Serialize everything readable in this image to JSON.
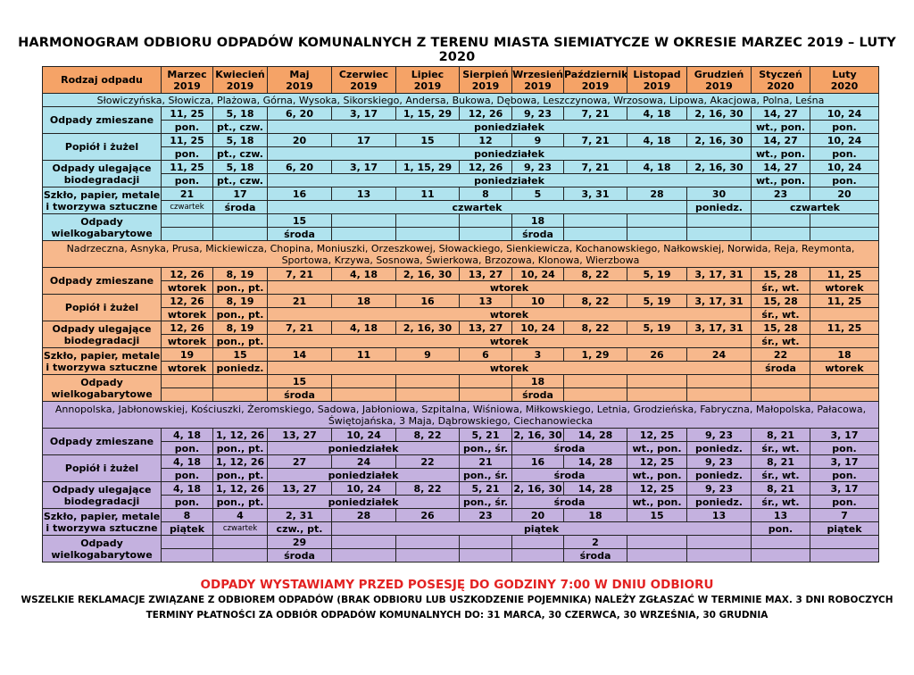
{
  "title": "HARMONOGRAM ODBIORU ODPADÓW KOMUNALNYCH Z TERENU MIASTA SIEMIATYCZE W OKRESIE MARZEC 2019 – LUTY 2020",
  "header": {
    "type": "Rodzaj odpadu",
    "months": [
      {
        "name": "Marzec",
        "year": "2019"
      },
      {
        "name": "Kwiecień",
        "year": "2019"
      },
      {
        "name": "Maj",
        "year": "2019"
      },
      {
        "name": "Czerwiec",
        "year": "2019"
      },
      {
        "name": "Lipiec",
        "year": "2019"
      },
      {
        "name": "Sierpień",
        "year": "2019"
      },
      {
        "name": "Wrzesień",
        "year": "2019"
      },
      {
        "name": "Październik",
        "year": "2019"
      },
      {
        "name": "Listopad",
        "year": "2019"
      },
      {
        "name": "Grudzień",
        "year": "2019"
      },
      {
        "name": "Styczeń",
        "year": "2020"
      },
      {
        "name": "Luty",
        "year": "2020"
      }
    ]
  },
  "zones": [
    {
      "streets": "Słowiczyńska, Słowicza, Plażowa, Górna, Wysoka, Sikorskiego, Andersa, Bukowa, Dębowa, Leszczynowa, Wrzosowa, Lipowa, Akacjowa, Polna, Leśna",
      "rows": [
        {
          "label": "Odpady zmieszane",
          "dates": [
            "11, 25",
            "5, 18",
            "6, 20",
            "3, 17",
            "1, 15, 29",
            "12, 26",
            "9, 23",
            "7, 21",
            "4, 18",
            "2, 16, 30",
            "14, 27",
            "10, 24"
          ],
          "days": [
            {
              "text": "pon.",
              "span": 1
            },
            {
              "text": "pt., czw.",
              "span": 1
            },
            {
              "text": "poniedziałek",
              "span": 8
            },
            {
              "text": "wt., pon.",
              "span": 1
            },
            {
              "text": "pon.",
              "span": 1
            }
          ]
        },
        {
          "label": "Popiół i żużel",
          "dates": [
            "11, 25",
            "5, 18",
            "20",
            "17",
            "15",
            "12",
            "9",
            "7, 21",
            "4, 18",
            "2, 16, 30",
            "14, 27",
            "10, 24"
          ],
          "days": [
            {
              "text": "pon.",
              "span": 1
            },
            {
              "text": "pt., czw.",
              "span": 1
            },
            {
              "text": "poniedziałek",
              "span": 8
            },
            {
              "text": "wt., pon.",
              "span": 1
            },
            {
              "text": "pon.",
              "span": 1
            }
          ]
        },
        {
          "label": "Odpady ulegające biodegradacji",
          "dates": [
            "11, 25",
            "5, 18",
            "6, 20",
            "3, 17",
            "1, 15, 29",
            "12, 26",
            "9, 23",
            "7, 21",
            "4, 18",
            "2, 16, 30",
            "14, 27",
            "10, 24"
          ],
          "days": [
            {
              "text": "pon.",
              "span": 1
            },
            {
              "text": "pt., czw.",
              "span": 1
            },
            {
              "text": "poniedziałek",
              "span": 8
            },
            {
              "text": "wt., pon.",
              "span": 1
            },
            {
              "text": "pon.",
              "span": 1
            }
          ]
        },
        {
          "label": "Szkło, papier, metale i tworzywa sztuczne",
          "dates": [
            "21",
            "17",
            "16",
            "13",
            "11",
            "8",
            "5",
            "3, 31",
            "28",
            "30",
            "23",
            "20"
          ],
          "days": [
            {
              "text": "czwartek",
              "span": 1,
              "small": true
            },
            {
              "text": "środa",
              "span": 1
            },
            {
              "text": "czwartek",
              "span": 7
            },
            {
              "text": "poniedz.",
              "span": 1
            },
            {
              "text": "czwartek",
              "span": 2
            }
          ]
        },
        {
          "label": "Odpady wielkogabarytowe",
          "dates": [
            "",
            "",
            "15",
            "",
            "",
            "",
            "18",
            "",
            "",
            "",
            "",
            ""
          ],
          "days": [
            {
              "text": "",
              "span": 1
            },
            {
              "text": "",
              "span": 1
            },
            {
              "text": "środa",
              "span": 1
            },
            {
              "text": "",
              "span": 1
            },
            {
              "text": "",
              "span": 1
            },
            {
              "text": "",
              "span": 1
            },
            {
              "text": "środa",
              "span": 1
            },
            {
              "text": "",
              "span": 1
            },
            {
              "text": "",
              "span": 1
            },
            {
              "text": "",
              "span": 1
            },
            {
              "text": "",
              "span": 1
            },
            {
              "text": "",
              "span": 1
            }
          ]
        }
      ]
    },
    {
      "streets": "Nadrzeczna, Asnyka, Prusa, Mickiewicza, Chopina, Moniuszki, Orzeszkowej, Słowackiego, Sienkiewicza, Kochanowskiego, Nałkowskiej, Norwida, Reja, Reymonta, Sportowa, Krzywa, Sosnowa, Świerkowa, Brzozowa, Klonowa, Wierzbowa",
      "rows": [
        {
          "label": "Odpady zmieszane",
          "dates": [
            "12, 26",
            "8, 19",
            "7, 21",
            "4, 18",
            "2, 16, 30",
            "13, 27",
            "10, 24",
            "8, 22",
            "5, 19",
            "3, 17, 31",
            "15, 28",
            "11, 25"
          ],
          "days": [
            {
              "text": "wtorek",
              "span": 1
            },
            {
              "text": "pon., pt.",
              "span": 1
            },
            {
              "text": "wtorek",
              "span": 8
            },
            {
              "text": "śr., wt.",
              "span": 1
            },
            {
              "text": "wtorek",
              "span": 1
            }
          ]
        },
        {
          "label": "Popiół i żużel",
          "dates": [
            "12, 26",
            "8, 19",
            "21",
            "18",
            "16",
            "13",
            "10",
            "8, 22",
            "5, 19",
            "3, 17, 31",
            "15, 28",
            "11, 25"
          ],
          "days": [
            {
              "text": "wtorek",
              "span": 1
            },
            {
              "text": "pon., pt.",
              "span": 1
            },
            {
              "text": "wtorek",
              "span": 8
            },
            {
              "text": "śr., wt.",
              "span": 1
            },
            {
              "text": "",
              "span": 1
            }
          ]
        },
        {
          "label": "Odpady ulegające biodegradacji",
          "dates": [
            "12, 26",
            "8, 19",
            "7, 21",
            "4, 18",
            "2, 16, 30",
            "13, 27",
            "10, 24",
            "8, 22",
            "5, 19",
            "3, 17, 31",
            "15, 28",
            "11, 25"
          ],
          "days": [
            {
              "text": "wtorek",
              "span": 1
            },
            {
              "text": "pon., pt.",
              "span": 1
            },
            {
              "text": "wtorek",
              "span": 8
            },
            {
              "text": "śr., wt.",
              "span": 1
            },
            {
              "text": "",
              "span": 1
            }
          ]
        },
        {
          "label": "Szkło, papier, metale i tworzywa sztuczne",
          "dates": [
            "19",
            "15",
            "14",
            "11",
            "9",
            "6",
            "3",
            "1, 29",
            "26",
            "24",
            "22",
            "18"
          ],
          "days": [
            {
              "text": "wtorek",
              "span": 1
            },
            {
              "text": "poniedz.",
              "span": 1
            },
            {
              "text": "wtorek",
              "span": 8
            },
            {
              "text": "środa",
              "span": 1
            },
            {
              "text": "wtorek",
              "span": 1
            }
          ]
        },
        {
          "label": "Odpady wielkogabarytowe",
          "dates": [
            "",
            "",
            "15",
            "",
            "",
            "",
            "18",
            "",
            "",
            "",
            "",
            ""
          ],
          "days": [
            {
              "text": "",
              "span": 1
            },
            {
              "text": "",
              "span": 1
            },
            {
              "text": "środa",
              "span": 1
            },
            {
              "text": "",
              "span": 1
            },
            {
              "text": "",
              "span": 1
            },
            {
              "text": "",
              "span": 1
            },
            {
              "text": "środa",
              "span": 1
            },
            {
              "text": "",
              "span": 1
            },
            {
              "text": "",
              "span": 1
            },
            {
              "text": "",
              "span": 1
            },
            {
              "text": "",
              "span": 1
            },
            {
              "text": "",
              "span": 1
            }
          ]
        }
      ]
    },
    {
      "streets": "Annopolska, Jabłonowskiej, Kościuszki, Żeromskiego, Sadowa, Jabłoniowa, Szpitalna, Wiśniowa, Miłkowskiego, Letnia, Grodzieńska, Fabryczna, Małopolska, Pałacowa, Świętojańska, 3 Maja, Dąbrowskiego, Ciechanowiecka",
      "rows": [
        {
          "label": "Odpady zmieszane",
          "dates": [
            "4, 18",
            "1, 12, 26",
            "13, 27",
            "10, 24",
            "8, 22",
            "5, 21",
            "2, 16, 30",
            "14, 28",
            "12, 25",
            "9, 23",
            "8, 21",
            "3, 17"
          ],
          "days": [
            {
              "text": "pon.",
              "span": 1
            },
            {
              "text": "pon., pt.",
              "span": 1
            },
            {
              "text": "poniedziałek",
              "span": 3
            },
            {
              "text": "pon., śr.",
              "span": 1
            },
            {
              "text": "środa",
              "span": 2
            },
            {
              "text": "wt., pon.",
              "span": 1
            },
            {
              "text": "poniedz.",
              "span": 1
            },
            {
              "text": "śr., wt.",
              "span": 1
            },
            {
              "text": "pon.",
              "span": 1
            }
          ]
        },
        {
          "label": "Popiół i żużel",
          "dates": [
            "4, 18",
            "1, 12, 26",
            "27",
            "24",
            "22",
            "21",
            "16",
            "14, 28",
            "12, 25",
            "9, 23",
            "8, 21",
            "3, 17"
          ],
          "days": [
            {
              "text": "pon.",
              "span": 1
            },
            {
              "text": "pon., pt.",
              "span": 1
            },
            {
              "text": "poniedziałek",
              "span": 3
            },
            {
              "text": "pon., śr.",
              "span": 1
            },
            {
              "text": "środa",
              "span": 2
            },
            {
              "text": "wt., pon.",
              "span": 1
            },
            {
              "text": "poniedz.",
              "span": 1
            },
            {
              "text": "śr., wt.",
              "span": 1
            },
            {
              "text": "pon.",
              "span": 1
            }
          ]
        },
        {
          "label": "Odpady ulegające biodegradacji",
          "dates": [
            "4, 18",
            "1, 12, 26",
            "13, 27",
            "10, 24",
            "8, 22",
            "5, 21",
            "2, 16, 30",
            "14, 28",
            "12, 25",
            "9, 23",
            "8, 21",
            "3, 17"
          ],
          "days": [
            {
              "text": "pon.",
              "span": 1
            },
            {
              "text": "pon., pt.",
              "span": 1
            },
            {
              "text": "poniedziałek",
              "span": 3
            },
            {
              "text": "pon., śr.",
              "span": 1
            },
            {
              "text": "środa",
              "span": 2
            },
            {
              "text": "wt., pon.",
              "span": 1
            },
            {
              "text": "poniedz.",
              "span": 1
            },
            {
              "text": "śr., wt.",
              "span": 1
            },
            {
              "text": "pon.",
              "span": 1
            }
          ]
        },
        {
          "label": "Szkło, papier, metale i tworzywa sztuczne",
          "dates": [
            "8",
            "4",
            "2, 31",
            "28",
            "26",
            "23",
            "20",
            "18",
            "15",
            "13",
            "13",
            "7"
          ],
          "days": [
            {
              "text": "piątek",
              "span": 1
            },
            {
              "text": "czwartek",
              "span": 1,
              "small": true
            },
            {
              "text": "czw., pt.",
              "span": 1
            },
            {
              "text": "piątek",
              "span": 7
            },
            {
              "text": "pon.",
              "span": 1
            },
            {
              "text": "piątek",
              "span": 1
            }
          ]
        },
        {
          "label": "Odpady wielkogabarytowe",
          "dates": [
            "",
            "",
            "29",
            "",
            "",
            "",
            "",
            "2",
            "",
            "",
            "",
            ""
          ],
          "days": [
            {
              "text": "",
              "span": 1
            },
            {
              "text": "",
              "span": 1
            },
            {
              "text": "środa",
              "span": 1
            },
            {
              "text": "",
              "span": 1
            },
            {
              "text": "",
              "span": 1
            },
            {
              "text": "",
              "span": 1
            },
            {
              "text": "",
              "span": 1
            },
            {
              "text": "środa",
              "span": 1
            },
            {
              "text": "",
              "span": 1
            },
            {
              "text": "",
              "span": 1
            },
            {
              "text": "",
              "span": 1
            },
            {
              "text": "",
              "span": 1
            }
          ]
        }
      ]
    }
  ],
  "footer": {
    "notice": "ODPADY WYSTAWIAMY PRZED POSESJĘ DO GODZINY 7:00 W DNIU ODBIORU",
    "complaints": "WSZELKIE REKLAMACJE ZWIĄZANE Z ODBIOREM ODPADÓW (BRAK ODBIORU LUB USZKODZENIE POJEMNIKA) NALEŻY ZGŁASZAĆ W TERMINIE MAX. 3 DNI ROBOCZYCH",
    "payments": "TERMINY PŁATNOŚCI ZA ODBIÓR ODPADÓW KOMUNALNYCH DO: 31 MARCA, 30 CZERWCA, 30 WRZEŚNIA, 30 GRUDNIA"
  },
  "colors": {
    "header": "#f5a367",
    "zone1": "#b0e3ee",
    "zone2": "#f7b88c",
    "zone3": "#c4b1df",
    "notice": "#e32222"
  }
}
